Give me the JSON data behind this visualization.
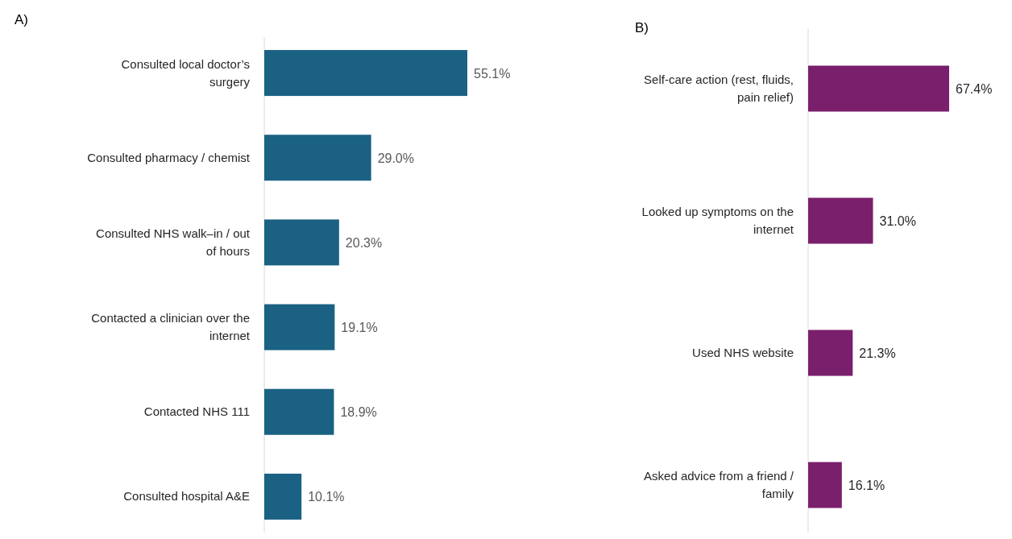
{
  "chart_data": [
    {
      "type": "bar",
      "orientation": "horizontal",
      "title": "A)",
      "categories": [
        "Consulted local doctor’s surgery",
        "Consulted pharmacy / chemist",
        "Consulted NHS walk–in / out of hours",
        "Contacted a clinician over the internet",
        "Contacted NHS 111",
        "Consulted hospital A&E"
      ],
      "values": [
        55.1,
        29.0,
        20.3,
        19.1,
        18.9,
        10.1
      ],
      "value_labels": [
        "55.1%",
        "29.0%",
        "20.3%",
        "19.1%",
        "18.9%",
        "10.1%"
      ],
      "color": "#1a6183"
    },
    {
      "type": "bar",
      "orientation": "horizontal",
      "title": "B)",
      "categories": [
        "Self-care action (rest, fluids, pain relief)",
        "Looked up symptoms on the internet",
        "Used NHS website",
        "Asked advice from a friend / family"
      ],
      "values": [
        67.4,
        31.0,
        21.3,
        16.1
      ],
      "value_labels": [
        "67.4%",
        "31.0%",
        "21.3%",
        "16.1%"
      ],
      "color": "#7a1f6c"
    }
  ]
}
